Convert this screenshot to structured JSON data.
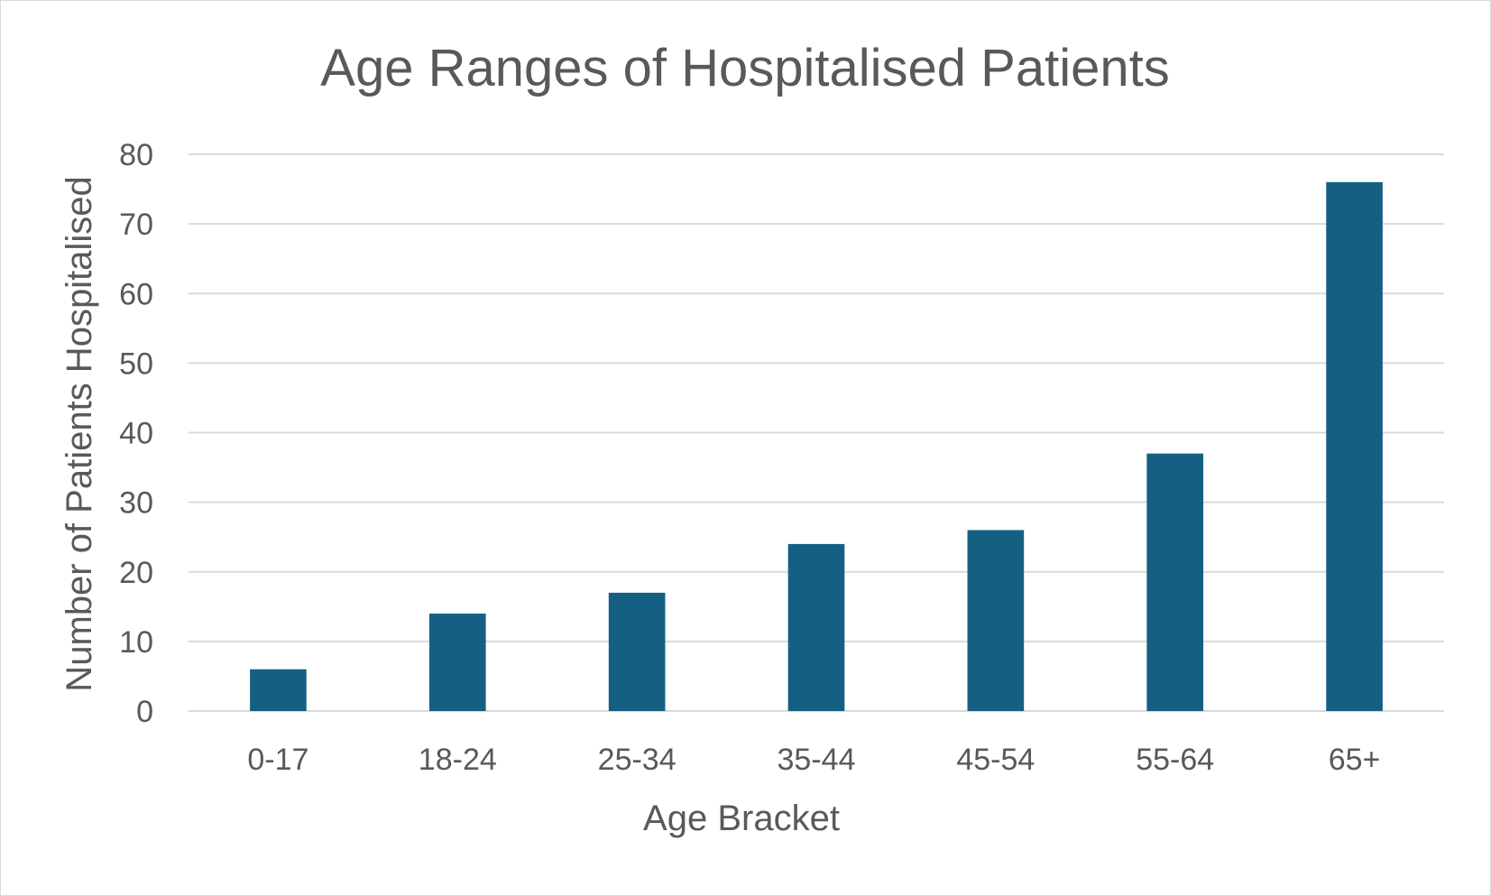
{
  "chart_data": {
    "type": "bar",
    "title": "Age Ranges of Hospitalised Patients",
    "xlabel": "Age Bracket",
    "ylabel": "Number of Patients Hospitalised",
    "categories": [
      "0-17",
      "18-24",
      "25-34",
      "35-44",
      "45-54",
      "55-64",
      "65+"
    ],
    "values": [
      6,
      14,
      17,
      24,
      26,
      37,
      76
    ],
    "ylim": [
      0,
      80
    ],
    "yticks": [
      0,
      10,
      20,
      30,
      40,
      50,
      60,
      70,
      80
    ],
    "grid": true,
    "legend": "none",
    "colors": {
      "bar": "#156082",
      "grid": "#d9d9d9",
      "text": "#595959"
    }
  }
}
